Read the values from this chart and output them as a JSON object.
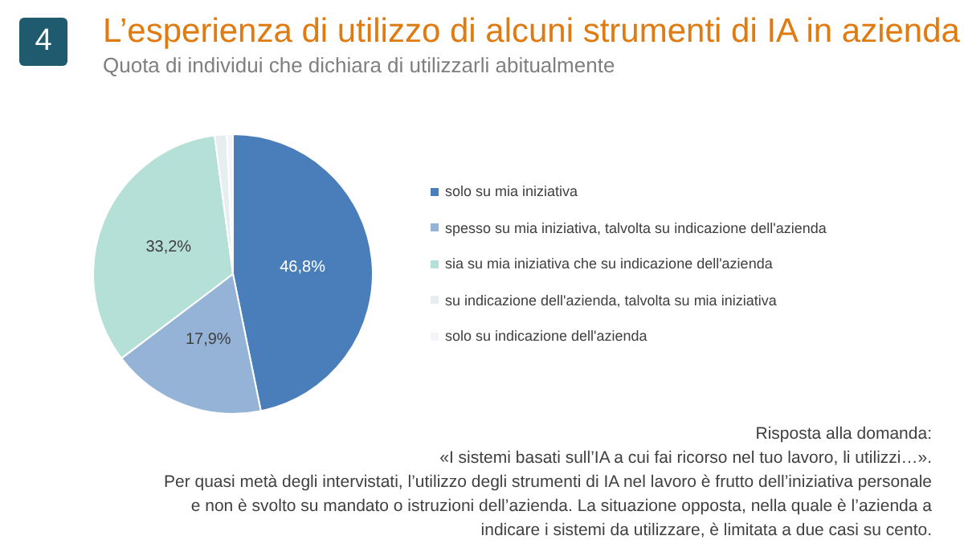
{
  "chart_data": {
    "type": "pie",
    "title": "L’esperienza di utilizzo di alcuni strumenti di IA in azienda",
    "subtitle": "Quota di individui che dichiara di utilizzarli abitualmente",
    "categories": [
      "solo su mia iniziativa",
      "spesso su mia iniziativa, talvolta su indicazione dell'azienda",
      "sia su mia iniziativa che su indicazione dell'azienda",
      "su indicazione dell'azienda, talvolta su mia iniziativa",
      "solo su indicazione dell'azienda"
    ],
    "values": [
      46.8,
      17.9,
      33.2,
      1.4,
      0.7
    ],
    "colors": [
      "#4a7ebb",
      "#95b3d7",
      "#b5e0d7",
      "#e6eef0",
      "#f3f6f8"
    ],
    "value_labels": [
      "46,8%",
      "17,9%",
      "33,2%",
      null,
      null
    ],
    "legend": "right",
    "annotations": [
      "4",
      "Risposta alla domanda:",
      "«I sistemi basati sull’IA a cui fai ricorso nel tuo lavoro, li utilizzi…».",
      "Per quasi metà degli intervistati, l’utilizzo degli strumenti di IA nel lavoro è frutto dell’iniziativa personale e non è svolto su mandato o istruzioni dell’azienda. La situazione opposta, nella quale è l’azienda a indicare i sistemi da utilizzare, è limitata a due casi su cento."
    ]
  }
}
